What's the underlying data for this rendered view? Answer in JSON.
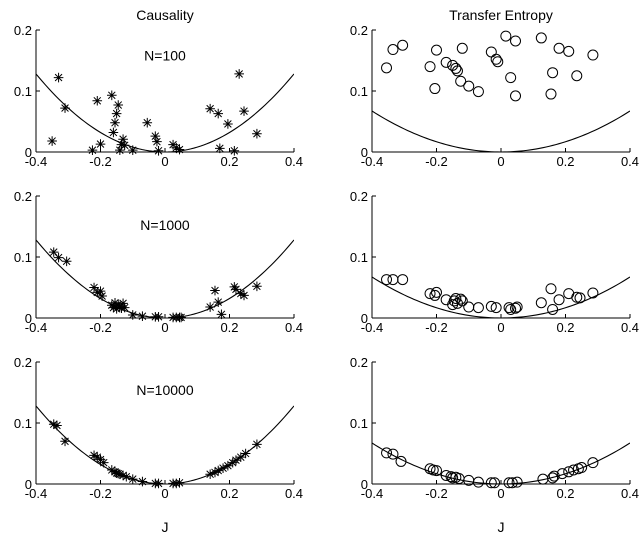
{
  "column_titles": [
    "Causality",
    "Transfer Entropy"
  ],
  "xlabel": "J",
  "line_color": "#000000",
  "chart_data": [
    {
      "type": "scatter",
      "panel": "causality-n100",
      "title": "Causality",
      "annotation": "N=100",
      "marker": "asterisk",
      "xlim": [
        -0.4,
        0.4
      ],
      "ylim": [
        0,
        0.2
      ],
      "xticks": [
        "-0.4",
        "-0.2",
        "0",
        "0.2",
        "0.4"
      ],
      "yticks": [
        "0",
        "0.1",
        "0.2"
      ],
      "curve": {
        "a": 0.8
      },
      "points": [
        [
          -0.35,
          0.018
        ],
        [
          -0.33,
          0.122
        ],
        [
          -0.31,
          0.072
        ],
        [
          -0.225,
          0.003
        ],
        [
          -0.21,
          0.084
        ],
        [
          -0.2,
          0.013
        ],
        [
          -0.165,
          0.093
        ],
        [
          -0.16,
          0.032
        ],
        [
          -0.155,
          0.048
        ],
        [
          -0.15,
          0.063
        ],
        [
          -0.145,
          0.077
        ],
        [
          -0.14,
          0.003
        ],
        [
          -0.135,
          0.012
        ],
        [
          -0.13,
          0.021
        ],
        [
          -0.125,
          0.011
        ],
        [
          -0.1,
          0.003
        ],
        [
          -0.055,
          0.048
        ],
        [
          -0.03,
          0.026
        ],
        [
          -0.025,
          0.017
        ],
        [
          -0.02,
          0.002
        ],
        [
          0.025,
          0.012
        ],
        [
          0.035,
          0.007
        ],
        [
          0.045,
          0.004
        ],
        [
          0.14,
          0.071
        ],
        [
          0.165,
          0.063
        ],
        [
          0.17,
          0.006
        ],
        [
          0.195,
          0.046
        ],
        [
          0.215,
          0.002
        ],
        [
          0.23,
          0.128
        ],
        [
          0.245,
          0.067
        ],
        [
          0.285,
          0.03
        ]
      ]
    },
    {
      "type": "scatter",
      "panel": "transfer-entropy-n100",
      "title": "Transfer Entropy",
      "marker": "circle",
      "xlim": [
        -0.4,
        0.4
      ],
      "ylim": [
        0,
        0.2
      ],
      "xticks": [
        "-0.4",
        "-0.2",
        "0",
        "0.2",
        "0.4"
      ],
      "yticks": [
        "0",
        "0.1",
        "0.2"
      ],
      "curve": {
        "a": 0.42
      },
      "points": [
        [
          -0.355,
          0.138
        ],
        [
          -0.335,
          0.168
        ],
        [
          -0.305,
          0.175
        ],
        [
          -0.22,
          0.14
        ],
        [
          -0.2,
          0.167
        ],
        [
          -0.205,
          0.104
        ],
        [
          -0.17,
          0.147
        ],
        [
          -0.15,
          0.142
        ],
        [
          -0.14,
          0.137
        ],
        [
          -0.135,
          0.133
        ],
        [
          -0.125,
          0.116
        ],
        [
          -0.12,
          0.17
        ],
        [
          -0.1,
          0.108
        ],
        [
          -0.07,
          0.099
        ],
        [
          -0.03,
          0.164
        ],
        [
          -0.015,
          0.152
        ],
        [
          -0.01,
          0.148
        ],
        [
          0.015,
          0.19
        ],
        [
          0.03,
          0.122
        ],
        [
          0.045,
          0.092
        ],
        [
          0.045,
          0.182
        ],
        [
          0.125,
          0.187
        ],
        [
          0.16,
          0.13
        ],
        [
          0.155,
          0.095
        ],
        [
          0.18,
          0.17
        ],
        [
          0.21,
          0.165
        ],
        [
          0.235,
          0.125
        ],
        [
          0.285,
          0.159
        ]
      ]
    },
    {
      "type": "scatter",
      "panel": "causality-n1000",
      "annotation": "N=1000",
      "marker": "asterisk",
      "xlim": [
        -0.4,
        0.4
      ],
      "ylim": [
        0,
        0.2
      ],
      "xticks": [
        "-0.4",
        "-0.2",
        "0",
        "0.2",
        "0.4"
      ],
      "yticks": [
        "0",
        "0.1",
        "0.2"
      ],
      "curve": {
        "a": 0.8
      },
      "points": [
        [
          -0.345,
          0.108
        ],
        [
          -0.33,
          0.099
        ],
        [
          -0.305,
          0.093
        ],
        [
          -0.22,
          0.05
        ],
        [
          -0.21,
          0.042
        ],
        [
          -0.2,
          0.044
        ],
        [
          -0.195,
          0.036
        ],
        [
          -0.165,
          0.021
        ],
        [
          -0.16,
          0.017
        ],
        [
          -0.155,
          0.025
        ],
        [
          -0.15,
          0.015
        ],
        [
          -0.145,
          0.022
        ],
        [
          -0.14,
          0.019
        ],
        [
          -0.135,
          0.016
        ],
        [
          -0.13,
          0.024
        ],
        [
          -0.125,
          0.017
        ],
        [
          -0.1,
          0.005
        ],
        [
          -0.07,
          0.003
        ],
        [
          -0.03,
          0.002
        ],
        [
          -0.02,
          0.002
        ],
        [
          0.025,
          0.001
        ],
        [
          0.035,
          0.001
        ],
        [
          0.045,
          0.001
        ],
        [
          0.05,
          0.001
        ],
        [
          0.14,
          0.018
        ],
        [
          0.155,
          0.045
        ],
        [
          0.165,
          0.026
        ],
        [
          0.175,
          0.006
        ],
        [
          0.215,
          0.051
        ],
        [
          0.22,
          0.047
        ],
        [
          0.235,
          0.04
        ],
        [
          0.245,
          0.037
        ],
        [
          0.285,
          0.052
        ]
      ]
    },
    {
      "type": "scatter",
      "panel": "transfer-entropy-n1000",
      "marker": "circle",
      "xlim": [
        -0.4,
        0.4
      ],
      "ylim": [
        0,
        0.2
      ],
      "xticks": [
        "-0.4",
        "-0.2",
        "0",
        "0.2",
        "0.4"
      ],
      "yticks": [
        "0",
        "0.1",
        "0.2"
      ],
      "curve": {
        "a": 0.42
      },
      "points": [
        [
          -0.355,
          0.063
        ],
        [
          -0.335,
          0.063
        ],
        [
          -0.305,
          0.063
        ],
        [
          -0.22,
          0.04
        ],
        [
          -0.205,
          0.037
        ],
        [
          -0.2,
          0.042
        ],
        [
          -0.17,
          0.03
        ],
        [
          -0.15,
          0.022
        ],
        [
          -0.145,
          0.028
        ],
        [
          -0.14,
          0.032
        ],
        [
          -0.135,
          0.024
        ],
        [
          -0.125,
          0.031
        ],
        [
          -0.12,
          0.028
        ],
        [
          -0.1,
          0.018
        ],
        [
          -0.07,
          0.017
        ],
        [
          -0.03,
          0.019
        ],
        [
          -0.015,
          0.017
        ],
        [
          0.025,
          0.017
        ],
        [
          0.03,
          0.014
        ],
        [
          0.045,
          0.016
        ],
        [
          0.05,
          0.018
        ],
        [
          0.125,
          0.025
        ],
        [
          0.155,
          0.048
        ],
        [
          0.16,
          0.014
        ],
        [
          0.18,
          0.03
        ],
        [
          0.21,
          0.04
        ],
        [
          0.235,
          0.034
        ],
        [
          0.245,
          0.033
        ],
        [
          0.285,
          0.041
        ]
      ]
    },
    {
      "type": "scatter",
      "panel": "causality-n10000",
      "annotation": "N=10000",
      "marker": "asterisk",
      "xlim": [
        -0.4,
        0.4
      ],
      "ylim": [
        0,
        0.2
      ],
      "xticks": [
        "-0.4",
        "-0.2",
        "0",
        "0.2",
        "0.4"
      ],
      "yticks": [
        "0",
        "0.1",
        "0.2"
      ],
      "curve": {
        "a": 0.8
      },
      "points": [
        [
          -0.345,
          0.098
        ],
        [
          -0.335,
          0.096
        ],
        [
          -0.31,
          0.07
        ],
        [
          -0.22,
          0.047
        ],
        [
          -0.21,
          0.044
        ],
        [
          -0.2,
          0.04
        ],
        [
          -0.19,
          0.035
        ],
        [
          -0.165,
          0.023
        ],
        [
          -0.155,
          0.02
        ],
        [
          -0.15,
          0.018
        ],
        [
          -0.145,
          0.017
        ],
        [
          -0.14,
          0.016
        ],
        [
          -0.13,
          0.014
        ],
        [
          -0.12,
          0.012
        ],
        [
          -0.1,
          0.008
        ],
        [
          -0.07,
          0.004
        ],
        [
          -0.03,
          0.001
        ],
        [
          -0.02,
          0.001
        ],
        [
          0.025,
          0.001
        ],
        [
          0.035,
          0.001
        ],
        [
          0.045,
          0.002
        ],
        [
          0.14,
          0.016
        ],
        [
          0.155,
          0.019
        ],
        [
          0.165,
          0.022
        ],
        [
          0.18,
          0.026
        ],
        [
          0.195,
          0.03
        ],
        [
          0.21,
          0.035
        ],
        [
          0.22,
          0.039
        ],
        [
          0.235,
          0.044
        ],
        [
          0.25,
          0.05
        ],
        [
          0.285,
          0.065
        ]
      ]
    },
    {
      "type": "scatter",
      "panel": "transfer-entropy-n10000",
      "marker": "circle",
      "xlim": [
        -0.4,
        0.4
      ],
      "ylim": [
        0,
        0.2
      ],
      "xticks": [
        "-0.4",
        "-0.2",
        "0",
        "0.2",
        "0.4"
      ],
      "yticks": [
        "0",
        "0.1",
        "0.2"
      ],
      "curve": {
        "a": 0.42
      },
      "points": [
        [
          -0.355,
          0.051
        ],
        [
          -0.335,
          0.049
        ],
        [
          -0.31,
          0.037
        ],
        [
          -0.22,
          0.025
        ],
        [
          -0.21,
          0.023
        ],
        [
          -0.2,
          0.022
        ],
        [
          -0.17,
          0.014
        ],
        [
          -0.155,
          0.012
        ],
        [
          -0.15,
          0.01
        ],
        [
          -0.14,
          0.011
        ],
        [
          -0.13,
          0.009
        ],
        [
          -0.1,
          0.006
        ],
        [
          -0.07,
          0.003
        ],
        [
          -0.03,
          0.002
        ],
        [
          -0.02,
          0.002
        ],
        [
          0.025,
          0.002
        ],
        [
          0.035,
          0.002
        ],
        [
          0.05,
          0.003
        ],
        [
          0.13,
          0.008
        ],
        [
          0.16,
          0.01
        ],
        [
          0.165,
          0.013
        ],
        [
          0.19,
          0.017
        ],
        [
          0.21,
          0.02
        ],
        [
          0.225,
          0.023
        ],
        [
          0.24,
          0.025
        ],
        [
          0.25,
          0.027
        ],
        [
          0.285,
          0.035
        ]
      ]
    }
  ]
}
